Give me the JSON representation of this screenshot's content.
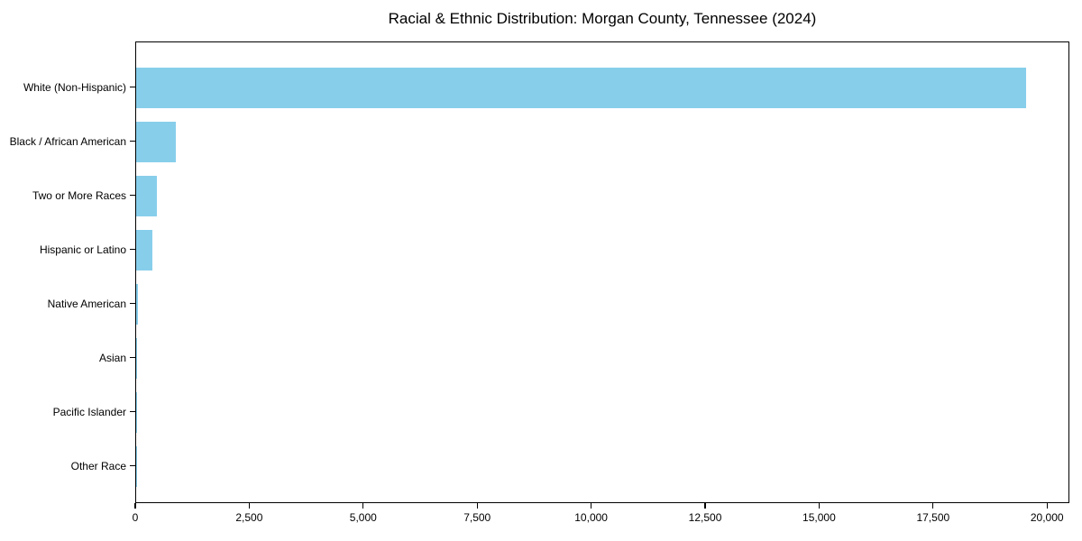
{
  "figure": {
    "background_color": "#ffffff",
    "text_color": "#000000",
    "spine_color": "#000000"
  },
  "chart_data": {
    "type": "bar",
    "orientation": "horizontal",
    "title": "Racial & Ethnic Distribution: Morgan County, Tennessee (2024)",
    "xlabel": "",
    "ylabel": "",
    "grid": false,
    "legend": null,
    "bar_color": "#87CEEB",
    "xlim": [
      0,
      20490
    ],
    "categories": [
      "White (Non-Hispanic)",
      "Black / African American",
      "Two or More Races",
      "Hispanic or Latino",
      "Native American",
      "Asian",
      "Pacific Islander",
      "Other Race"
    ],
    "values": [
      19515,
      870,
      460,
      365,
      30,
      12,
      4,
      4
    ],
    "x_ticks": [
      {
        "value": 0,
        "label": "0"
      },
      {
        "value": 2500,
        "label": "2,500"
      },
      {
        "value": 5000,
        "label": "5,000"
      },
      {
        "value": 7500,
        "label": "7,500"
      },
      {
        "value": 10000,
        "label": "10,000"
      },
      {
        "value": 12500,
        "label": "12,500"
      },
      {
        "value": 15000,
        "label": "15,000"
      },
      {
        "value": 17500,
        "label": "17,500"
      },
      {
        "value": 20000,
        "label": "20,000"
      }
    ]
  }
}
